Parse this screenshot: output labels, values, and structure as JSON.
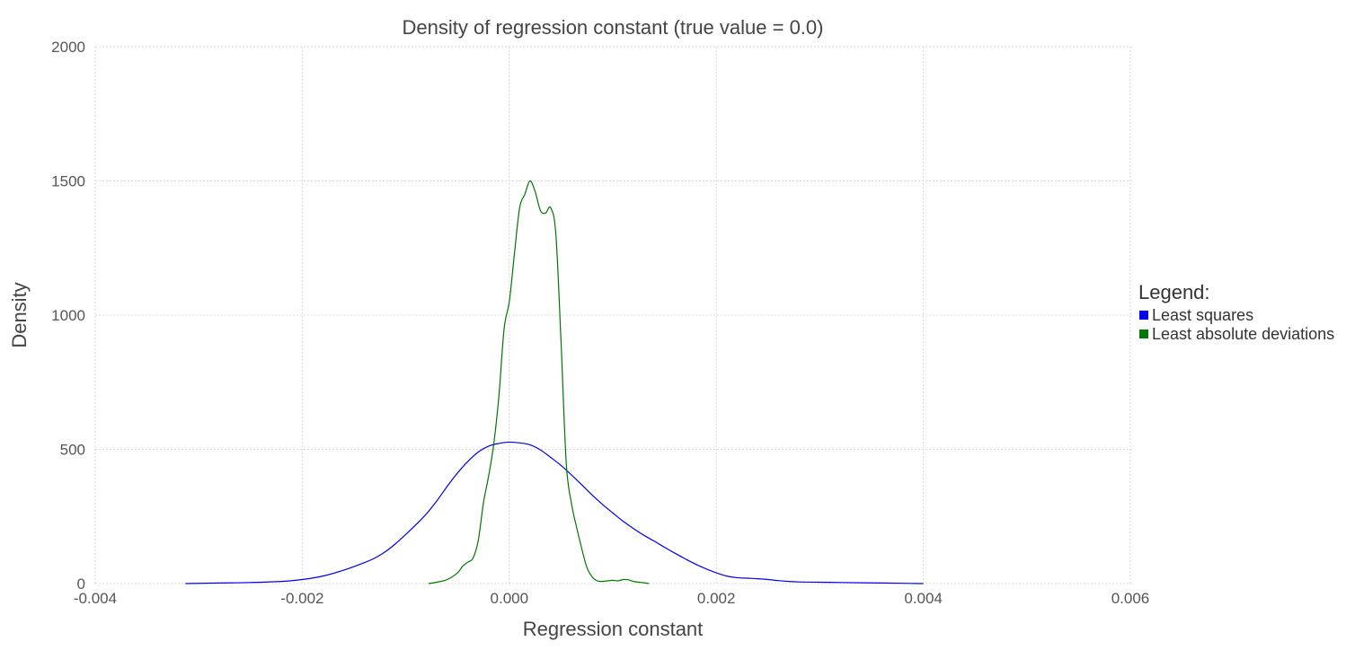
{
  "chart_data": {
    "type": "line",
    "title": "Density of regression constant (true value = 0.0)",
    "xlabel": "Regression constant",
    "ylabel": "Density",
    "xlim": [
      -0.004,
      0.006
    ],
    "ylim": [
      0,
      2000
    ],
    "x_ticks": [
      -0.004,
      -0.002,
      0.0,
      0.002,
      0.004,
      0.006
    ],
    "x_tick_labels": [
      "-0.004",
      "-0.002",
      "0.000",
      "0.002",
      "0.004",
      "0.006"
    ],
    "y_ticks": [
      0,
      500,
      1000,
      1500,
      2000
    ],
    "y_tick_labels": [
      "0",
      "500",
      "1000",
      "1500",
      "2000"
    ],
    "grid": true,
    "legend": {
      "title": "Legend:",
      "placement": "right",
      "entries": [
        {
          "label": "Least squares",
          "color": "#0000ee"
        },
        {
          "label": "Least absolute deviations",
          "color": "#007700"
        }
      ]
    },
    "series": [
      {
        "name": "Least squares",
        "color": "#0000ee",
        "x": [
          -0.00313,
          -0.0028,
          -0.0025,
          -0.0022,
          -0.002,
          -0.0018,
          -0.0016,
          -0.0014,
          -0.0013,
          -0.0012,
          -0.0011,
          -0.001,
          -0.0009,
          -0.0008,
          -0.0007,
          -0.0006,
          -0.0005,
          -0.0004,
          -0.0003,
          -0.0002,
          -0.0001,
          0.0,
          0.0001,
          0.0002,
          0.0003,
          0.0004,
          0.0005,
          0.0006,
          0.0007,
          0.0008,
          0.0009,
          0.001,
          0.0011,
          0.0012,
          0.0013,
          0.0014,
          0.0015,
          0.0016,
          0.0017,
          0.0018,
          0.0019,
          0.002,
          0.0021,
          0.0022,
          0.0023,
          0.0024,
          0.0025,
          0.0026,
          0.0027,
          0.0028,
          0.003,
          0.0032,
          0.0034,
          0.0036,
          0.0038,
          0.004
        ],
        "values": [
          0,
          2,
          4,
          8,
          15,
          28,
          50,
          78,
          95,
          118,
          148,
          183,
          220,
          260,
          308,
          362,
          412,
          455,
          490,
          512,
          522,
          527,
          524,
          517,
          498,
          470,
          440,
          405,
          368,
          330,
          295,
          263,
          232,
          205,
          180,
          158,
          135,
          113,
          92,
          72,
          55,
          40,
          28,
          22,
          20,
          18,
          15,
          11,
          8,
          6,
          5,
          4,
          3,
          2,
          1,
          0
        ]
      },
      {
        "name": "Least absolute deviations",
        "color": "#007700",
        "x": [
          -0.00078,
          -0.0007,
          -0.0006,
          -0.0005,
          -0.00045,
          -0.0004,
          -0.00035,
          -0.0003,
          -0.00025,
          -0.0002,
          -0.00015,
          -0.0001,
          -5e-05,
          0.0,
          5e-05,
          0.0001,
          0.00015,
          0.0002,
          0.00025,
          0.0003,
          0.00035,
          0.0004,
          0.00045,
          0.0005,
          0.00055,
          0.0006,
          0.00065,
          0.0007,
          0.00075,
          0.0008,
          0.00085,
          0.0009,
          0.00095,
          0.001,
          0.00105,
          0.0011,
          0.00115,
          0.0012,
          0.00125,
          0.0013,
          0.00135
        ],
        "values": [
          0,
          5,
          15,
          40,
          65,
          80,
          95,
          160,
          300,
          400,
          520,
          700,
          950,
          1050,
          1230,
          1400,
          1450,
          1500,
          1460,
          1390,
          1380,
          1400,
          1300,
          900,
          450,
          300,
          210,
          130,
          60,
          25,
          10,
          8,
          10,
          12,
          10,
          15,
          14,
          8,
          5,
          3,
          0
        ]
      }
    ]
  }
}
